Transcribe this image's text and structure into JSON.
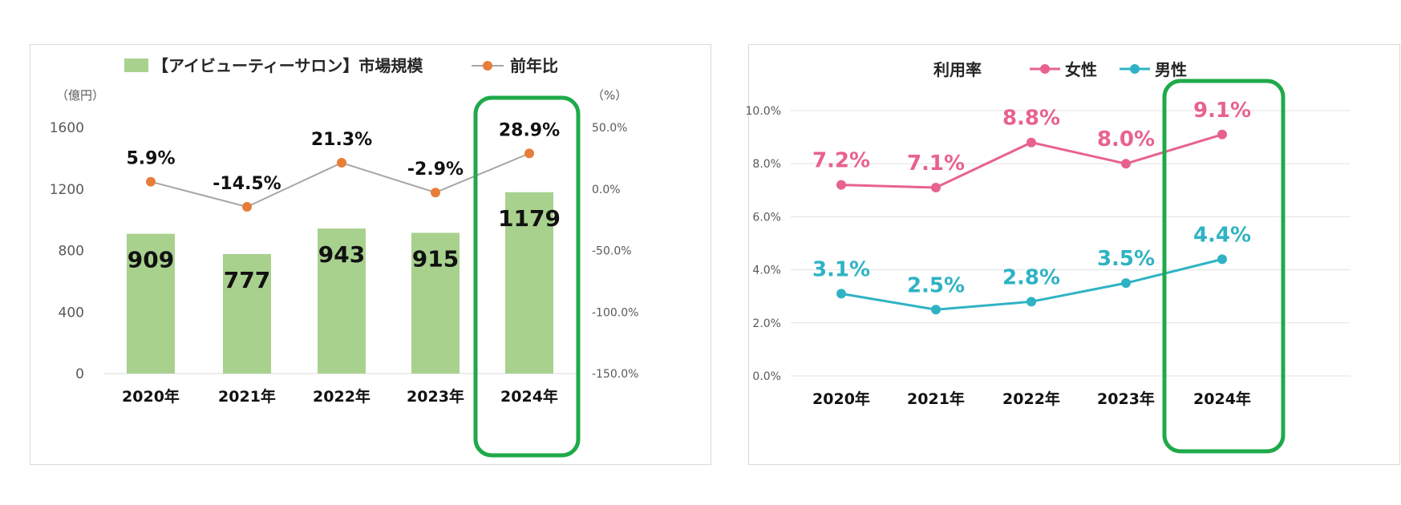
{
  "chart_data": [
    {
      "type": "bar+line",
      "title": "",
      "categories": [
        "2020年",
        "2021年",
        "2022年",
        "2023年",
        "2024年"
      ],
      "left_axis": {
        "unit_label": "（億円）",
        "ylim": [
          0,
          1600
        ],
        "ticks": [
          "0",
          "400",
          "800",
          "1200",
          "1600"
        ]
      },
      "right_axis": {
        "unit_label": "（%）",
        "ylim": [
          -150,
          50
        ],
        "ticks": [
          "-150.0%",
          "-100.0%",
          "-50.0%",
          "0.0%",
          "50.0%"
        ]
      },
      "series": [
        {
          "name": "【アイビューティーサロン】市場規模",
          "kind": "bar",
          "axis": "left",
          "values": [
            909,
            777,
            943,
            915,
            1179
          ],
          "labels": [
            "909",
            "777",
            "943",
            "915",
            "1179"
          ]
        },
        {
          "name": "前年比",
          "kind": "line",
          "axis": "right",
          "values": [
            5.9,
            -14.5,
            21.3,
            -2.9,
            28.9
          ],
          "labels": [
            "5.9%",
            "-14.5%",
            "21.3%",
            "-2.9%",
            "28.9%"
          ]
        }
      ],
      "highlight_category": "2024年",
      "colors": {
        "bar": "#a9d18e",
        "line": "#a6a6a6",
        "marker": "#e67e3a",
        "highlight": "#1faa4a"
      },
      "legend": "top"
    },
    {
      "type": "line",
      "title": "",
      "legend_title": "利用率",
      "categories": [
        "2020年",
        "2021年",
        "2022年",
        "2023年",
        "2024年"
      ],
      "y_axis": {
        "ylim": [
          0,
          10
        ],
        "ticks": [
          "0.0%",
          "2.0%",
          "4.0%",
          "6.0%",
          "8.0%",
          "10.0%"
        ]
      },
      "grid": true,
      "series": [
        {
          "name": "女性",
          "values": [
            7.2,
            7.1,
            8.8,
            8.0,
            9.1
          ],
          "labels": [
            "7.2%",
            "7.1%",
            "8.8%",
            "8.0%",
            "9.1%"
          ],
          "color": "#e8628f"
        },
        {
          "name": "男性",
          "values": [
            3.1,
            2.5,
            2.8,
            3.5,
            4.4
          ],
          "labels": [
            "3.1%",
            "2.5%",
            "2.8%",
            "3.5%",
            "4.4%"
          ],
          "color": "#2fb3c4"
        }
      ],
      "highlight_category": "2024年",
      "colors": {
        "highlight": "#1faa4a"
      },
      "legend": "top"
    }
  ]
}
